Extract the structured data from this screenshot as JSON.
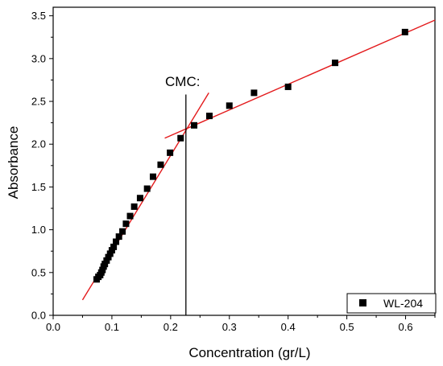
{
  "chart_data": {
    "type": "scatter",
    "title": "",
    "xlabel": "Concentration (gr/L)",
    "ylabel": "Absorbance",
    "xlim": [
      0.0,
      0.65
    ],
    "ylim": [
      0.0,
      3.6
    ],
    "xticks": [
      "0.0",
      "0.1",
      "0.2",
      "0.3",
      "0.4",
      "0.5",
      "0.6"
    ],
    "xtick_values": [
      0.0,
      0.1,
      0.2,
      0.3,
      0.4,
      0.5,
      0.6
    ],
    "yticks": [
      "0.0",
      "0.5",
      "1.0",
      "1.5",
      "2.0",
      "2.5",
      "3.0",
      "3.5"
    ],
    "ytick_values": [
      0.0,
      0.5,
      1.0,
      1.5,
      2.0,
      2.5,
      3.0,
      3.5
    ],
    "grid": false,
    "legend_position": "bottom-right",
    "series": [
      {
        "name": "WL-204",
        "marker": "square",
        "color": "#000000",
        "x": [
          0.074,
          0.077,
          0.08,
          0.082,
          0.084,
          0.086,
          0.088,
          0.091,
          0.094,
          0.097,
          0.1,
          0.103,
          0.107,
          0.112,
          0.118,
          0.124,
          0.131,
          0.138,
          0.148,
          0.16,
          0.17,
          0.183,
          0.199,
          0.217,
          0.24,
          0.266,
          0.3,
          0.342,
          0.4,
          0.48,
          0.599
        ],
        "y": [
          0.42,
          0.45,
          0.47,
          0.5,
          0.53,
          0.57,
          0.6,
          0.64,
          0.68,
          0.72,
          0.76,
          0.8,
          0.86,
          0.92,
          0.98,
          1.07,
          1.16,
          1.27,
          1.37,
          1.48,
          1.62,
          1.76,
          1.9,
          2.07,
          2.22,
          2.33,
          2.45,
          2.6,
          2.67,
          2.95,
          3.31
        ]
      }
    ],
    "fit_lines": [
      {
        "color": "#e31a1c",
        "x": [
          0.05,
          0.265
        ],
        "y": [
          0.18,
          2.6
        ]
      },
      {
        "color": "#e31a1c",
        "x": [
          0.19,
          0.65
        ],
        "y": [
          2.07,
          3.45
        ]
      }
    ],
    "cmc_line": {
      "x": 0.226,
      "y_top": 2.58,
      "color": "#000000"
    },
    "annotation": "CMC:",
    "legend": {
      "label": "WL-204"
    }
  }
}
